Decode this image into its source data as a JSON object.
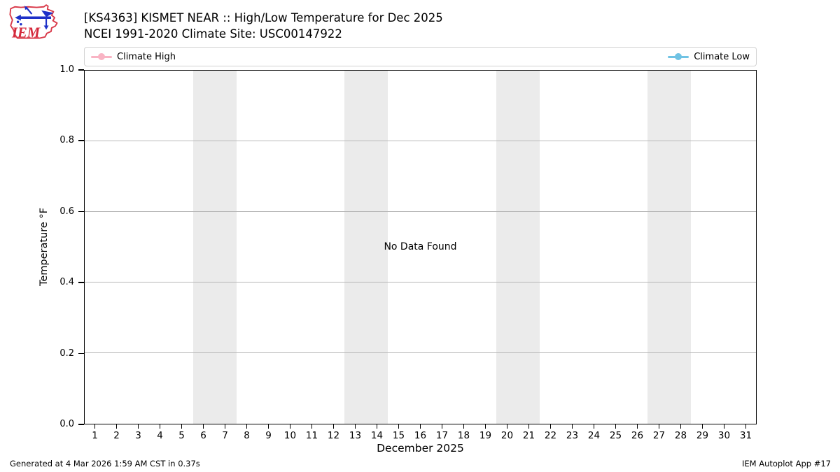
{
  "header": {
    "title_line1": "[KS4363] KISMET NEAR :: High/Low Temperature for Dec 2025",
    "title_line2": "NCEI 1991-2020 Climate Site: USC00147922",
    "logo_text": "IEM"
  },
  "legend": {
    "items": [
      {
        "label": "Climate High",
        "color": "#f9b4c4"
      },
      {
        "label": "Climate Low",
        "color": "#70c3e4"
      }
    ]
  },
  "footer": {
    "generated": "Generated at 4 Mar 2026 1:59 AM CST in 0.37s",
    "app": "IEM Autoplot App #17"
  },
  "chart_data": {
    "type": "line",
    "title": "[KS4363] KISMET NEAR :: High/Low Temperature for Dec 2025",
    "subtitle": "NCEI 1991-2020 Climate Site: USC00147922",
    "xlabel": "December 2025",
    "ylabel": "Temperature °F",
    "no_data_text": "No Data Found",
    "x": [
      1,
      2,
      3,
      4,
      5,
      6,
      7,
      8,
      9,
      10,
      11,
      12,
      13,
      14,
      15,
      16,
      17,
      18,
      19,
      20,
      21,
      22,
      23,
      24,
      25,
      26,
      27,
      28,
      29,
      30,
      31
    ],
    "xlim": [
      0.5,
      31.5
    ],
    "ylim": [
      0.0,
      1.0
    ],
    "yticks": [
      0.0,
      0.2,
      0.4,
      0.6,
      0.8,
      1.0
    ],
    "ytick_labels": [
      "0.0",
      "0.2",
      "0.4",
      "0.6",
      "0.8",
      "1.0"
    ],
    "grid": true,
    "grid_color": "#b8b8b8",
    "weekend_bands": [
      [
        5.5,
        7.5
      ],
      [
        12.5,
        14.5
      ],
      [
        19.5,
        21.5
      ],
      [
        26.5,
        28.5
      ]
    ],
    "band_color": "#ebebeb",
    "legend_position": "top",
    "series": [
      {
        "name": "Climate High",
        "color": "#f9b4c4",
        "values": []
      },
      {
        "name": "Climate Low",
        "color": "#70c3e4",
        "values": []
      }
    ]
  }
}
